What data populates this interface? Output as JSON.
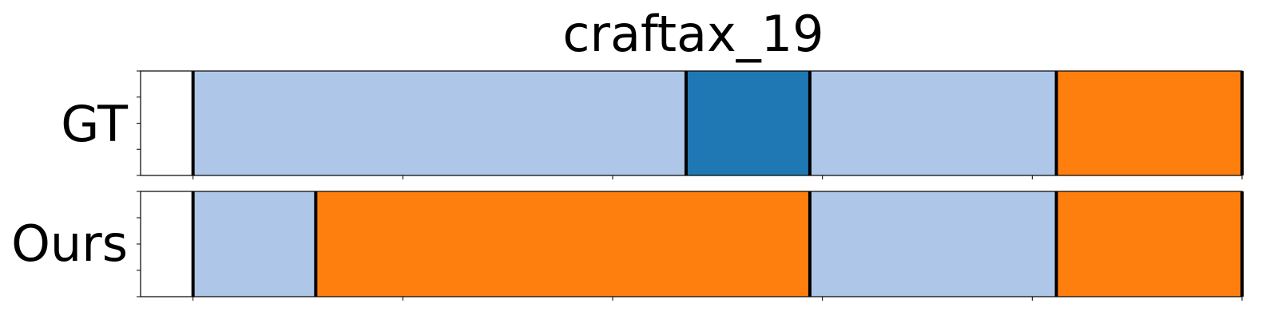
{
  "chart_data": {
    "type": "bar",
    "title": "craftax_19",
    "xlim": [
      0,
      105
    ],
    "xticks": [
      5,
      25,
      45,
      65,
      85,
      105
    ],
    "tick_labels_visible": false,
    "grid": false,
    "rows": [
      {
        "label": "GT",
        "segments": [
          {
            "start": 5,
            "end": 52,
            "color": "#aec7e8"
          },
          {
            "start": 52,
            "end": 63.8,
            "color": "#1f77b4"
          },
          {
            "start": 63.8,
            "end": 87.3,
            "color": "#aec7e8"
          },
          {
            "start": 87.3,
            "end": 105,
            "color": "#ff7f0e"
          }
        ],
        "boundaries": [
          5,
          52,
          63.8,
          87.3,
          105
        ]
      },
      {
        "label": "Ours",
        "segments": [
          {
            "start": 5,
            "end": 16.7,
            "color": "#aec7e8"
          },
          {
            "start": 16.7,
            "end": 63.8,
            "color": "#ff7f0e"
          },
          {
            "start": 63.8,
            "end": 87.3,
            "color": "#aec7e8"
          },
          {
            "start": 87.3,
            "end": 105,
            "color": "#ff7f0e"
          }
        ],
        "boundaries": [
          5,
          16.7,
          63.8,
          87.3,
          105
        ]
      }
    ]
  }
}
